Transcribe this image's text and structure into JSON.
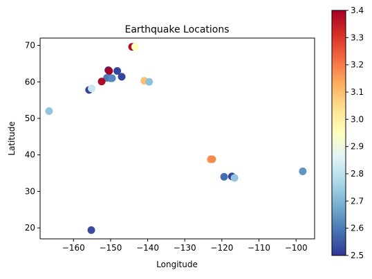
{
  "chart_data": {
    "type": "scatter",
    "title": "Earthquake Locations",
    "xlabel": "Longitude",
    "ylabel": "Latitude",
    "xlim": [
      -169,
      -95
    ],
    "ylim": [
      17,
      72
    ],
    "xticks": [
      -160,
      -150,
      -140,
      -130,
      -120,
      -110,
      -100
    ],
    "yticks": [
      20,
      30,
      40,
      50,
      60,
      70
    ],
    "grid": false,
    "colorbar": {
      "cmap": "RdYlBu_r",
      "vmin": 2.5,
      "vmax": 3.4,
      "ticks": [
        2.5,
        2.6,
        2.7,
        2.8,
        2.9,
        3.0,
        3.1,
        3.2,
        3.3,
        3.4
      ],
      "tick_labels": [
        "2.5",
        "2.6",
        "2.7",
        "2.8",
        "2.9",
        "3.0",
        "3.1",
        "3.2",
        "3.3",
        "3.4"
      ]
    },
    "points": [
      {
        "x": -144.2,
        "y": 69.6,
        "c": 3.38
      },
      {
        "x": -143.4,
        "y": 69.6,
        "c": 2.95
      },
      {
        "x": -150.6,
        "y": 63.2,
        "c": 2.5
      },
      {
        "x": -150.4,
        "y": 63.0,
        "c": 3.4
      },
      {
        "x": -148.2,
        "y": 63.0,
        "c": 2.52
      },
      {
        "x": -147.0,
        "y": 61.4,
        "c": 2.52
      },
      {
        "x": -149.9,
        "y": 61.0,
        "c": 2.57
      },
      {
        "x": -151.0,
        "y": 61.1,
        "c": 2.6
      },
      {
        "x": -149.6,
        "y": 61.0,
        "c": 2.62
      },
      {
        "x": -152.4,
        "y": 60.1,
        "c": 3.38
      },
      {
        "x": -155.8,
        "y": 57.8,
        "c": 2.52
      },
      {
        "x": -155.1,
        "y": 58.2,
        "c": 2.82
      },
      {
        "x": -140.9,
        "y": 60.3,
        "c": 3.1
      },
      {
        "x": -139.6,
        "y": 60.0,
        "c": 2.72
      },
      {
        "x": -166.6,
        "y": 52.0,
        "c": 2.73
      },
      {
        "x": -123.0,
        "y": 38.8,
        "c": 3.16
      },
      {
        "x": -122.6,
        "y": 38.8,
        "c": 3.18
      },
      {
        "x": -119.4,
        "y": 34.0,
        "c": 2.58
      },
      {
        "x": -117.3,
        "y": 34.1,
        "c": 2.52
      },
      {
        "x": -116.6,
        "y": 33.7,
        "c": 2.73
      },
      {
        "x": -98.2,
        "y": 35.5,
        "c": 2.64
      },
      {
        "x": -155.2,
        "y": 19.4,
        "c": 2.53
      }
    ]
  }
}
